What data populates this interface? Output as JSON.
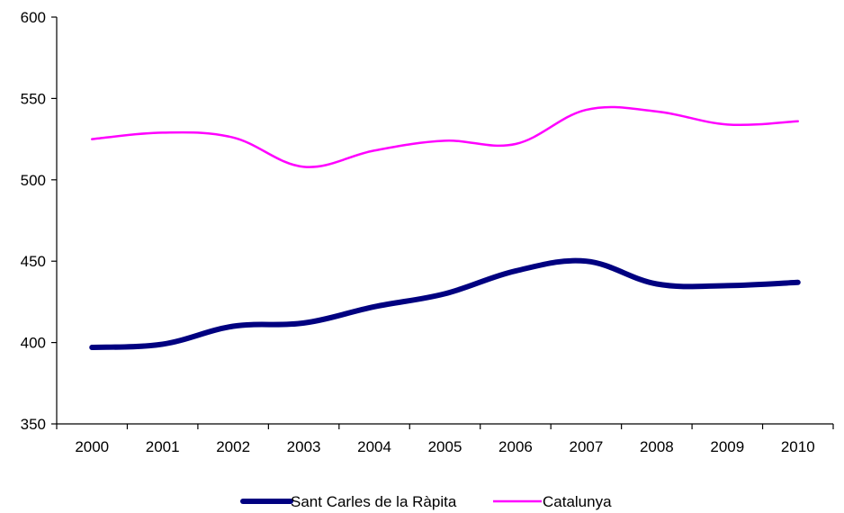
{
  "chart_data": {
    "type": "line",
    "title": "",
    "xlabel": "",
    "ylabel": "",
    "categories": [
      "2000",
      "2001",
      "2002",
      "2003",
      "2004",
      "2005",
      "2006",
      "2007",
      "2008",
      "2009",
      "2010"
    ],
    "ylim": [
      350,
      600
    ],
    "yticks": [
      "350",
      "400",
      "450",
      "500",
      "550",
      "600"
    ],
    "grid": false,
    "legend_position": "bottom",
    "series": [
      {
        "name": "Sant Carles de la Ràpita",
        "values": [
          397,
          399,
          410,
          412,
          422,
          430,
          444,
          450,
          436,
          435,
          437
        ],
        "color": "#000080"
      },
      {
        "name": "Catalunya",
        "values": [
          525,
          529,
          526,
          508,
          518,
          524,
          522,
          543,
          542,
          534,
          536
        ],
        "color": "#FF00FF"
      }
    ]
  }
}
